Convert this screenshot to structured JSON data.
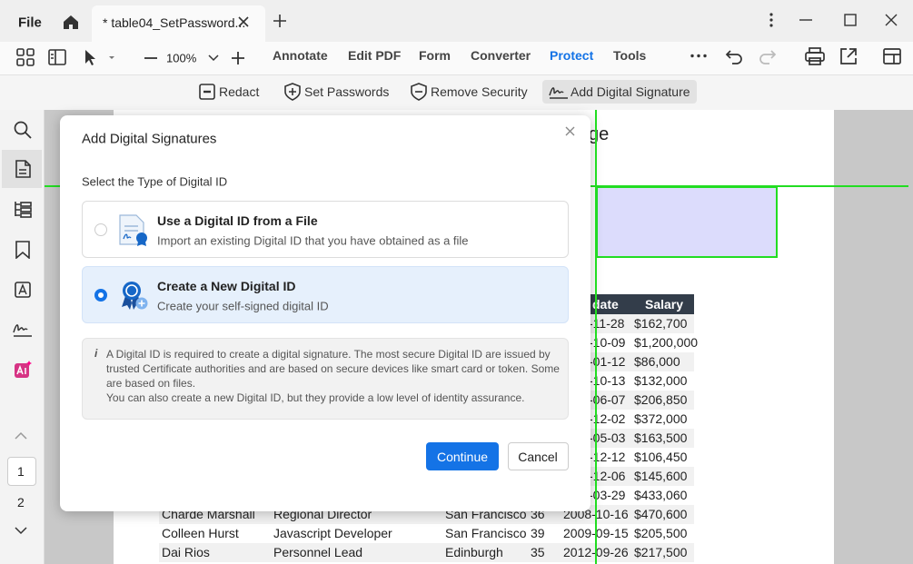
{
  "title_bar": {
    "file_menu": "File",
    "tab_title": "* table04_SetPassword..."
  },
  "toolbar": {
    "zoom": "100%",
    "menu": [
      "Annotate",
      "Edit PDF",
      "Form",
      "Converter",
      "Protect",
      "Tools"
    ]
  },
  "sub_toolbar": {
    "items": [
      "Redact",
      "Set Passwords",
      "Remove Security",
      "Add Digital Signature"
    ]
  },
  "sidebar": {
    "pages": [
      "1",
      "2"
    ]
  },
  "document": {
    "heading_fragment": "ge",
    "table": {
      "header": [
        "date",
        "Salary"
      ],
      "partial_rows": [
        [
          "-11-28",
          "$162,700"
        ],
        [
          "-10-09",
          "$1,200,000"
        ],
        [
          "-01-12",
          "$86,000"
        ],
        [
          "-10-13",
          "$132,000"
        ],
        [
          "-06-07",
          "$206,850"
        ],
        [
          "-12-02",
          "$372,000"
        ],
        [
          "-05-03",
          "$163,500"
        ],
        [
          "-12-12",
          "$106,450"
        ],
        [
          "-12-06",
          "$145,600"
        ],
        [
          "-03-29",
          "$433,060"
        ]
      ],
      "rows": [
        [
          "Charde Marshall",
          "Regional Director",
          "San Francisco",
          "36",
          "2008-10-16",
          "$470,600"
        ],
        [
          "Colleen Hurst",
          "Javascript Developer",
          "San Francisco",
          "39",
          "2009-09-15",
          "$205,500"
        ],
        [
          "Dai Rios",
          "Personnel Lead",
          "Edinburgh",
          "35",
          "2012-09-26",
          "$217,500"
        ]
      ]
    }
  },
  "dialog": {
    "title": "Add Digital Signatures",
    "subtitle": "Select the Type of Digital ID",
    "options": [
      {
        "title": "Use a Digital ID from a File",
        "description": "Import an existing Digital ID that you have obtained as a file"
      },
      {
        "title": "Create a New Digital ID",
        "description": "Create your self-signed digital ID"
      }
    ],
    "info_icon": "i",
    "info_lines": [
      "A Digital ID is required to create a digital signature. The most secure Digital ID are issued by",
      "trusted Certificate authorities and are based on secure devices like smart card or token. Some",
      "are based on files.",
      "You can also create a new Digital ID, but they provide a low level of identity assurance."
    ],
    "buttons": [
      "Continue",
      "Cancel"
    ]
  }
}
